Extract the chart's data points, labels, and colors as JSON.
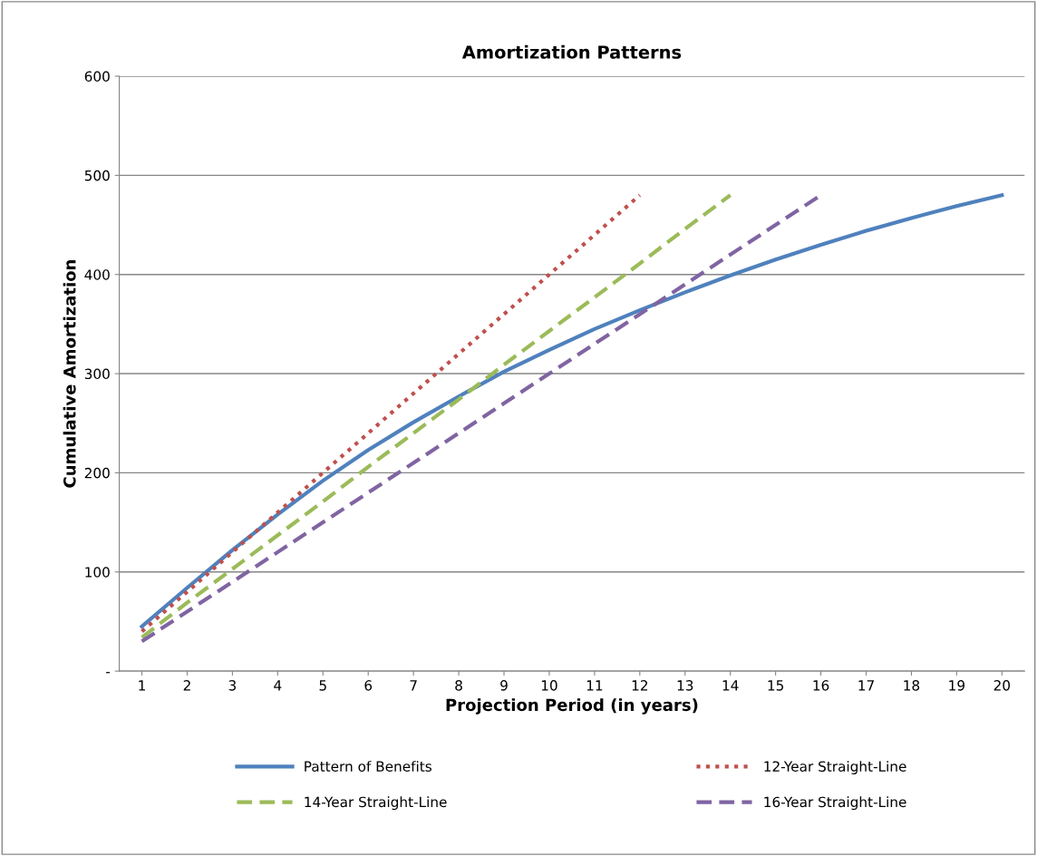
{
  "chart_data": {
    "type": "line",
    "title": "Amortization Patterns",
    "xlabel": "Projection Period (in years)",
    "ylabel": "Cumulative Amortization",
    "categories": [
      "1",
      "2",
      "3",
      "4",
      "5",
      "6",
      "7",
      "8",
      "9",
      "10",
      "11",
      "12",
      "13",
      "14",
      "15",
      "16",
      "17",
      "18",
      "19",
      "20"
    ],
    "ylim": [
      0,
      600
    ],
    "yticks": [
      {
        "value": 0,
        "label": "-"
      },
      100,
      200,
      300,
      400,
      500,
      600
    ],
    "grid": "y",
    "legend": "bottom",
    "marker": "none",
    "series": [
      {
        "name": "Pattern of Benefits",
        "color": "#4f81bd",
        "line_style": "solid",
        "values": [
          45,
          84,
          122,
          158,
          192,
          223,
          251,
          277,
          302,
          324,
          345,
          364,
          382,
          399,
          415,
          430,
          444,
          457,
          469,
          480
        ]
      },
      {
        "name": "12-Year Straight-Line",
        "color": "#c0504d",
        "line_style": "dotted",
        "values": [
          40,
          80,
          120,
          160,
          200,
          240,
          280,
          320,
          360,
          400,
          440,
          480,
          null,
          null,
          null,
          null,
          null,
          null,
          null,
          null
        ]
      },
      {
        "name": "14-Year Straight-Line",
        "color": "#9bbb59",
        "line_style": "dashed",
        "values": [
          34,
          69,
          103,
          137,
          171,
          206,
          240,
          274,
          309,
          343,
          377,
          411,
          446,
          480,
          null,
          null,
          null,
          null,
          null,
          null
        ]
      },
      {
        "name": "16-Year Straight-Line",
        "color": "#8064a2",
        "line_style": "dashed",
        "values": [
          30,
          60,
          90,
          120,
          150,
          180,
          210,
          240,
          270,
          300,
          330,
          360,
          390,
          420,
          450,
          480,
          null,
          null,
          null,
          null
        ]
      }
    ]
  }
}
